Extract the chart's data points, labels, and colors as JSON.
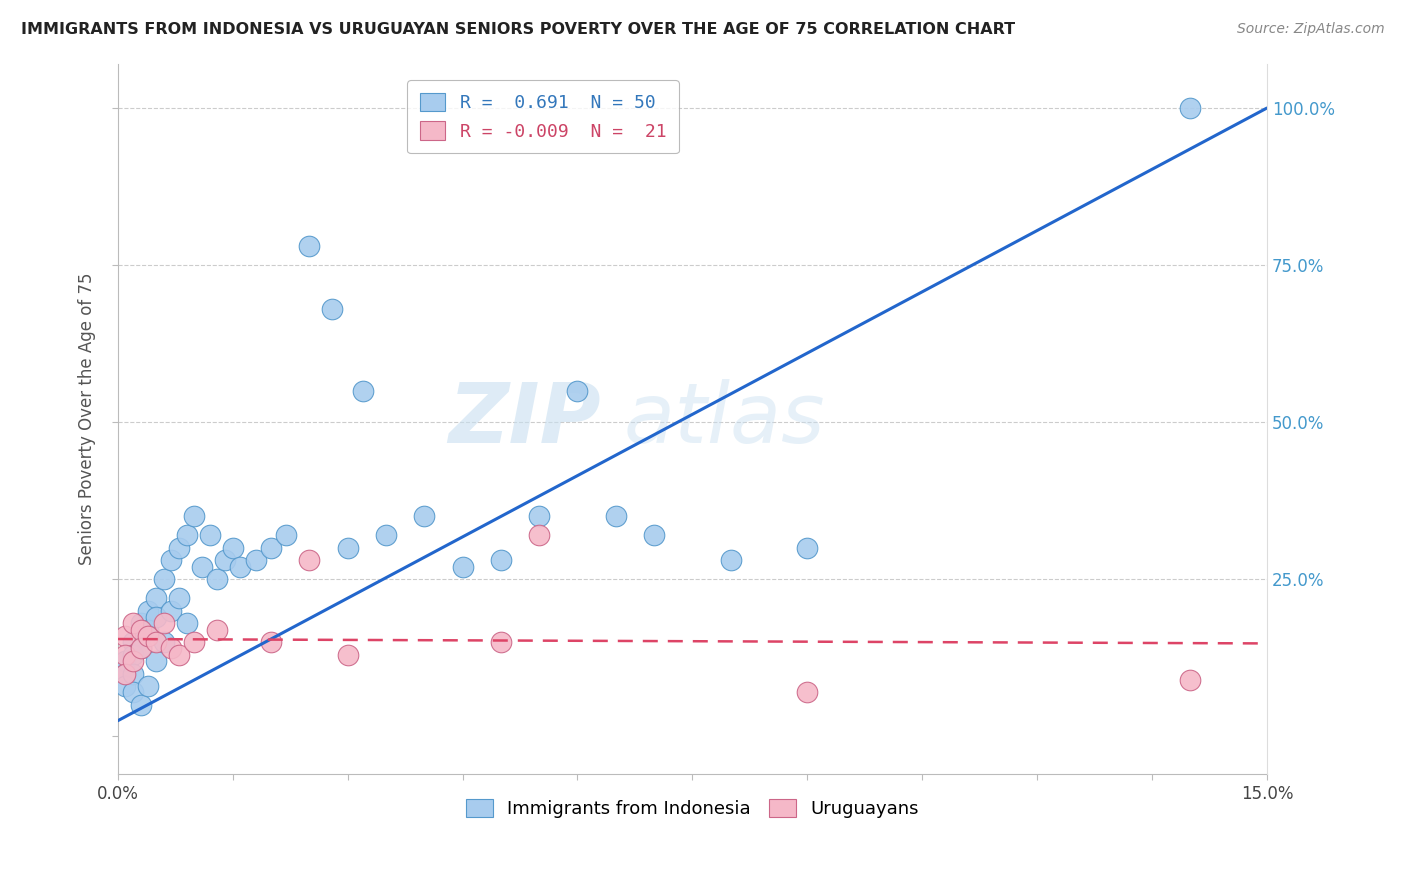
{
  "title": "IMMIGRANTS FROM INDONESIA VS URUGUAYAN SENIORS POVERTY OVER THE AGE OF 75 CORRELATION CHART",
  "source": "Source: ZipAtlas.com",
  "ylabel": "Seniors Poverty Over the Age of 75",
  "legend_blue_r": "R =  0.691",
  "legend_blue_n": "N = 50",
  "legend_pink_r": "R = -0.009",
  "legend_pink_n": "N =  21",
  "blue_color": "#a8ccee",
  "blue_edge_color": "#5599cc",
  "pink_color": "#f5b8c8",
  "pink_edge_color": "#cc6688",
  "blue_line_color": "#2266cc",
  "pink_line_color": "#dd4466",
  "watermark_zip": "ZIP",
  "watermark_atlas": "atlas",
  "blue_scatter_x": [
    0.001,
    0.001,
    0.001,
    0.002,
    0.002,
    0.002,
    0.002,
    0.003,
    0.003,
    0.003,
    0.003,
    0.004,
    0.004,
    0.004,
    0.005,
    0.005,
    0.005,
    0.006,
    0.006,
    0.007,
    0.007,
    0.008,
    0.008,
    0.009,
    0.009,
    0.01,
    0.011,
    0.012,
    0.013,
    0.014,
    0.015,
    0.016,
    0.018,
    0.02,
    0.022,
    0.025,
    0.028,
    0.03,
    0.032,
    0.035,
    0.04,
    0.045,
    0.05,
    0.055,
    0.06,
    0.065,
    0.07,
    0.08,
    0.09,
    0.14
  ],
  "blue_scatter_y": [
    0.12,
    0.1,
    0.08,
    0.15,
    0.13,
    0.1,
    0.07,
    0.18,
    0.16,
    0.14,
    0.05,
    0.2,
    0.17,
    0.08,
    0.22,
    0.19,
    0.12,
    0.25,
    0.15,
    0.28,
    0.2,
    0.3,
    0.22,
    0.32,
    0.18,
    0.35,
    0.27,
    0.32,
    0.25,
    0.28,
    0.3,
    0.27,
    0.28,
    0.3,
    0.32,
    0.78,
    0.68,
    0.3,
    0.55,
    0.32,
    0.35,
    0.27,
    0.28,
    0.35,
    0.55,
    0.35,
    0.32,
    0.28,
    0.3,
    1.0
  ],
  "pink_scatter_x": [
    0.001,
    0.001,
    0.001,
    0.002,
    0.002,
    0.003,
    0.003,
    0.004,
    0.005,
    0.006,
    0.007,
    0.008,
    0.01,
    0.013,
    0.02,
    0.025,
    0.03,
    0.05,
    0.055,
    0.09,
    0.14
  ],
  "pink_scatter_y": [
    0.16,
    0.13,
    0.1,
    0.18,
    0.12,
    0.17,
    0.14,
    0.16,
    0.15,
    0.18,
    0.14,
    0.13,
    0.15,
    0.17,
    0.15,
    0.28,
    0.13,
    0.15,
    0.32,
    0.07,
    0.09
  ],
  "blue_line_x0": 0.0,
  "blue_line_y0": 0.025,
  "blue_line_x1": 0.15,
  "blue_line_y1": 1.0,
  "pink_line_x0": 0.0,
  "pink_line_y0": 0.155,
  "pink_line_x1": 0.15,
  "pink_line_y1": 0.148,
  "xmin": 0.0,
  "xmax": 0.15,
  "ymin": -0.06,
  "ymax": 1.07
}
